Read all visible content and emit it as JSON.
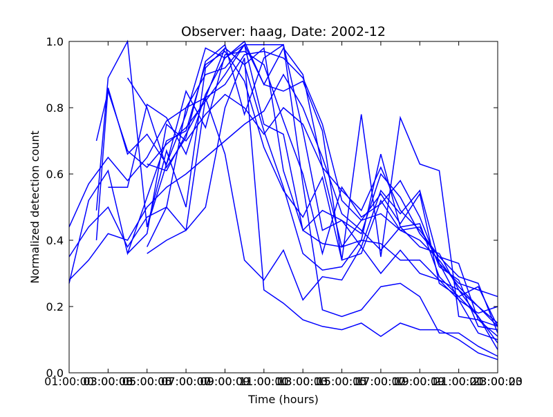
{
  "chart_data": {
    "type": "line",
    "title": "Observer: haag, Date: 2002-12",
    "xlabel": "Time (hours)",
    "ylabel": "Normalized detection count",
    "xlim": [
      1,
      23
    ],
    "ylim": [
      0.0,
      1.0
    ],
    "x_ticks": [
      1,
      3,
      5,
      7,
      9,
      11,
      13,
      15,
      17,
      19,
      21,
      23
    ],
    "x_tick_labels": [
      "01:00:00",
      "03:00:00",
      "05:00:00",
      "07:00:00",
      "09:00:00",
      "11:00:00",
      "13:00:00",
      "15:00:00",
      "17:00:00",
      "19:00:00",
      "21:00:00",
      "23:00:00"
    ],
    "x_tick_labels_secondary": [
      "",
      "03:00:03",
      "05:00:05",
      "07:00:07",
      "09:00:09",
      "11:00:11",
      "13:00:13",
      "15:00:15",
      "17:00:17",
      "19:00:19",
      "21:00:21",
      "23:00:23"
    ],
    "y_ticks": [
      0.0,
      0.2,
      0.4,
      0.6,
      0.8,
      1.0
    ],
    "y_tick_labels": [
      "0.0",
      "0.2",
      "0.4",
      "0.6",
      "0.8",
      "1.0"
    ],
    "grid": false,
    "legend": "none",
    "line_color": "#0000ff",
    "series": [
      {
        "x": [
          1,
          2,
          3,
          4,
          5,
          6,
          7,
          8,
          9,
          10,
          11,
          12,
          13,
          14,
          15,
          16,
          17,
          18,
          19,
          20,
          21,
          22,
          23
        ],
        "y": [
          0.44,
          0.57,
          0.65,
          0.58,
          0.65,
          0.76,
          0.8,
          0.83,
          0.87,
          0.96,
          0.97,
          0.95,
          0.89,
          0.75,
          0.52,
          0.46,
          0.48,
          0.43,
          0.4,
          0.34,
          0.26,
          0.2,
          0.15
        ]
      },
      {
        "x": [
          1,
          2,
          3,
          4,
          5,
          6,
          7,
          8,
          9,
          10,
          11,
          12,
          13,
          14,
          15,
          16,
          17,
          18,
          19,
          20,
          21,
          22,
          23
        ],
        "y": [
          0.28,
          0.34,
          0.42,
          0.4,
          0.5,
          0.56,
          0.6,
          0.65,
          0.7,
          0.75,
          0.79,
          0.9,
          0.8,
          0.65,
          0.48,
          0.43,
          0.37,
          0.44,
          0.38,
          0.36,
          0.25,
          0.2,
          0.14
        ]
      },
      {
        "x": [
          1,
          2,
          3,
          4,
          5,
          6,
          7,
          8,
          9,
          10,
          11,
          12,
          13,
          14,
          15,
          16,
          17,
          18,
          19,
          20,
          21,
          22,
          23
        ],
        "y": [
          0.35,
          0.44,
          0.5,
          0.38,
          0.47,
          0.5,
          0.8,
          0.9,
          0.92,
          0.99,
          0.75,
          0.72,
          0.43,
          0.49,
          0.46,
          0.38,
          0.55,
          0.48,
          0.55,
          0.33,
          0.22,
          0.18,
          0.2
        ]
      },
      {
        "x": [
          1,
          2,
          3,
          4,
          5,
          6,
          7,
          8,
          9,
          10,
          11,
          12,
          13,
          14,
          15,
          16,
          17,
          18,
          19,
          20,
          21,
          22,
          23
        ],
        "y": [
          0.27,
          0.52,
          0.61,
          0.36,
          0.53,
          0.7,
          0.73,
          0.93,
          0.97,
          0.88,
          0.68,
          0.55,
          0.47,
          0.59,
          0.34,
          0.36,
          0.52,
          0.43,
          0.44,
          0.33,
          0.27,
          0.25,
          0.23
        ]
      },
      {
        "x": [
          2.4,
          3,
          4,
          5,
          6,
          7,
          8,
          9,
          10,
          11,
          12,
          13,
          14,
          15,
          16,
          17,
          18,
          19,
          20,
          21,
          22,
          23
        ],
        "y": [
          0.4,
          0.86,
          0.66,
          0.72,
          0.63,
          0.85,
          0.74,
          0.96,
          0.97,
          0.93,
          0.76,
          0.6,
          0.36,
          0.56,
          0.47,
          0.51,
          0.58,
          0.47,
          0.32,
          0.28,
          0.14,
          0.13
        ]
      },
      {
        "x": [
          2.4,
          3,
          4,
          5,
          6,
          7,
          8,
          9,
          10,
          11,
          12,
          13,
          14,
          15,
          16,
          17,
          18,
          19,
          20,
          21,
          22,
          23
        ],
        "y": [
          0.49,
          0.89,
          1.0,
          0.44,
          0.67,
          0.5,
          0.92,
          0.98,
          0.93,
          0.98,
          0.61,
          0.43,
          0.39,
          0.38,
          0.4,
          0.66,
          0.44,
          0.45,
          0.29,
          0.23,
          0.17,
          0.09
        ]
      },
      {
        "x": [
          2.4,
          3,
          4,
          5,
          6,
          7,
          8,
          9,
          10,
          11,
          12,
          13,
          14,
          15,
          16,
          17,
          18,
          19,
          20,
          21,
          22,
          23
        ],
        "y": [
          0.7,
          0.85,
          0.67,
          0.62,
          0.69,
          0.74,
          0.82,
          0.9,
          0.99,
          0.87,
          0.85,
          0.88,
          0.73,
          0.34,
          0.78,
          0.35,
          0.77,
          0.63,
          0.61,
          0.17,
          0.16,
          0.11
        ]
      },
      {
        "x": [
          3,
          4,
          5,
          6,
          7,
          8,
          9,
          10,
          11,
          12,
          13,
          14,
          15,
          16,
          17,
          18,
          19,
          20,
          21,
          22,
          23
        ],
        "y": [
          0.56,
          0.56,
          0.81,
          0.77,
          0.66,
          0.84,
          0.95,
          1.0,
          0.87,
          0.98,
          0.9,
          0.62,
          0.38,
          0.46,
          0.54,
          0.45,
          0.54,
          0.27,
          0.23,
          0.26,
          0.14
        ]
      },
      {
        "x": [
          4,
          5,
          6,
          7,
          8,
          9,
          10,
          11,
          12,
          13,
          14,
          15,
          16,
          17,
          18,
          19,
          20,
          21,
          22,
          23
        ],
        "y": [
          0.89,
          0.8,
          0.62,
          0.71,
          0.94,
          0.99,
          0.78,
          0.95,
          0.99,
          0.73,
          0.43,
          0.46,
          0.42,
          0.6,
          0.53,
          0.42,
          0.35,
          0.29,
          0.27,
          0.12
        ]
      },
      {
        "x": [
          4,
          5,
          6,
          7,
          8,
          9,
          10,
          11,
          12,
          13,
          14,
          15,
          16,
          17,
          18,
          19,
          20,
          21,
          22,
          23
        ],
        "y": [
          0.36,
          0.42,
          0.75,
          0.7,
          0.78,
          0.84,
          0.8,
          0.72,
          0.8,
          0.75,
          0.62,
          0.55,
          0.49,
          0.62,
          0.49,
          0.43,
          0.35,
          0.33,
          0.16,
          0.14
        ]
      },
      {
        "x": [
          5,
          6,
          7,
          8,
          9,
          10,
          11,
          12,
          13,
          14,
          15,
          16,
          17,
          18,
          19,
          20,
          21,
          22,
          23
        ],
        "y": [
          0.36,
          0.4,
          0.43,
          0.83,
          0.66,
          0.34,
          0.28,
          0.37,
          0.22,
          0.29,
          0.28,
          0.38,
          0.3,
          0.37,
          0.3,
          0.28,
          0.25,
          0.17,
          0.07
        ]
      },
      {
        "x": [
          5,
          6,
          7,
          8,
          9,
          10,
          11,
          12,
          13,
          14,
          15,
          16,
          17,
          18,
          19,
          20,
          21,
          22,
          23
        ],
        "y": [
          0.38,
          0.5,
          0.43,
          0.5,
          0.8,
          0.95,
          0.25,
          0.21,
          0.16,
          0.14,
          0.13,
          0.15,
          0.11,
          0.15,
          0.13,
          0.13,
          0.1,
          0.06,
          0.04
        ]
      },
      {
        "x": [
          5,
          6,
          7,
          8,
          9,
          10,
          11,
          12,
          13,
          14,
          15,
          16,
          17,
          18,
          19,
          20,
          21,
          22,
          23
        ],
        "y": [
          0.44,
          0.63,
          0.78,
          0.98,
          0.95,
          0.99,
          0.99,
          0.99,
          0.57,
          0.19,
          0.17,
          0.19,
          0.26,
          0.27,
          0.23,
          0.12,
          0.12,
          0.08,
          0.05
        ]
      },
      {
        "x": [
          5,
          6,
          7,
          8,
          9,
          10,
          11,
          12,
          13,
          14,
          15,
          16,
          17,
          18,
          19,
          20,
          21,
          22,
          23
        ],
        "y": [
          0.63,
          0.61,
          0.72,
          0.83,
          0.98,
          0.93,
          0.73,
          0.56,
          0.36,
          0.31,
          0.32,
          0.4,
          0.39,
          0.34,
          0.34,
          0.28,
          0.22,
          0.12,
          0.1
        ]
      }
    ]
  }
}
